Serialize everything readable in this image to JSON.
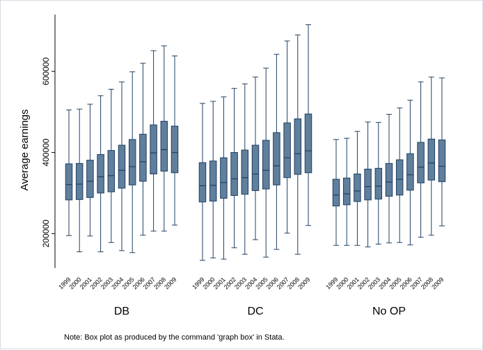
{
  "colors": {
    "box_fill": "#5f7f9c",
    "box_stroke": "#1f3f60",
    "whisker": "#1f3f60",
    "median": "#1f3f60",
    "axis": "#000000"
  },
  "chart_data": {
    "type": "box",
    "title": "",
    "ylabel": "Average earnings",
    "xlabel": "",
    "ylim": [
      115000,
      740000
    ],
    "yticks": [
      200000,
      400000,
      600000
    ],
    "grid": false,
    "note": "Note: Box plot as produced by the command 'graph box' in Stata.",
    "years": [
      "1999",
      "2000",
      "2001",
      "2002",
      "2003",
      "2004",
      "2005",
      "2006",
      "2007",
      "2008",
      "2009"
    ],
    "groups": [
      {
        "name": "DB",
        "boxes": [
          {
            "year": "1999",
            "min": 195000,
            "q1": 283000,
            "median": 321000,
            "q3": 372000,
            "max": 505000
          },
          {
            "year": "2000",
            "min": 155000,
            "q1": 284000,
            "median": 322000,
            "q3": 373000,
            "max": 507000
          },
          {
            "year": "2001",
            "min": 194000,
            "q1": 289000,
            "median": 329000,
            "q3": 381000,
            "max": 519000
          },
          {
            "year": "2002",
            "min": 155000,
            "q1": 300000,
            "median": 340000,
            "q3": 395000,
            "max": 540000
          },
          {
            "year": "2003",
            "min": 178000,
            "q1": 303000,
            "median": 343000,
            "q3": 405000,
            "max": 556000
          },
          {
            "year": "2004",
            "min": 158000,
            "q1": 312000,
            "median": 356000,
            "q3": 418000,
            "max": 574000
          },
          {
            "year": "2005",
            "min": 153000,
            "q1": 320000,
            "median": 365000,
            "q3": 432000,
            "max": 599000
          },
          {
            "year": "2006",
            "min": 196000,
            "q1": 329000,
            "median": 377000,
            "q3": 445000,
            "max": 620000
          },
          {
            "year": "2007",
            "min": 206000,
            "q1": 347000,
            "median": 399000,
            "q3": 468000,
            "max": 651000
          },
          {
            "year": "2008",
            "min": 206000,
            "q1": 354000,
            "median": 407000,
            "q3": 477000,
            "max": 663000
          },
          {
            "year": "2009",
            "min": 221000,
            "q1": 350000,
            "median": 400000,
            "q3": 465000,
            "max": 638000
          }
        ]
      },
      {
        "name": "DC",
        "boxes": [
          {
            "year": "1999",
            "min": 134000,
            "q1": 278000,
            "median": 318000,
            "q3": 375000,
            "max": 521000
          },
          {
            "year": "2000",
            "min": 140000,
            "q1": 280000,
            "median": 319000,
            "q3": 379000,
            "max": 526000
          },
          {
            "year": "2001",
            "min": 137000,
            "q1": 287000,
            "median": 326000,
            "q3": 387000,
            "max": 537000
          },
          {
            "year": "2002",
            "min": 165000,
            "q1": 294000,
            "median": 335000,
            "q3": 400000,
            "max": 558000
          },
          {
            "year": "2003",
            "min": 149000,
            "q1": 297000,
            "median": 338000,
            "q3": 406000,
            "max": 569000
          },
          {
            "year": "2004",
            "min": 185000,
            "q1": 306000,
            "median": 347000,
            "q3": 418000,
            "max": 586000
          },
          {
            "year": "2005",
            "min": 142000,
            "q1": 310000,
            "median": 356000,
            "q3": 430000,
            "max": 608000
          },
          {
            "year": "2006",
            "min": 161000,
            "q1": 320000,
            "median": 367000,
            "q3": 449000,
            "max": 642000
          },
          {
            "year": "2007",
            "min": 201000,
            "q1": 338000,
            "median": 387000,
            "q3": 473000,
            "max": 675000
          },
          {
            "year": "2008",
            "min": 149000,
            "q1": 346000,
            "median": 397000,
            "q3": 483000,
            "max": 690000
          },
          {
            "year": "2009",
            "min": 220000,
            "q1": 350000,
            "median": 404000,
            "q3": 495000,
            "max": 715000
          }
        ]
      },
      {
        "name": "No OP",
        "boxes": [
          {
            "year": "1999",
            "min": 171000,
            "q1": 268000,
            "median": 295000,
            "q3": 334000,
            "max": 432000
          },
          {
            "year": "2000",
            "min": 171000,
            "q1": 271000,
            "median": 298000,
            "q3": 337000,
            "max": 435000
          },
          {
            "year": "2001",
            "min": 171000,
            "q1": 279000,
            "median": 305000,
            "q3": 347000,
            "max": 452000
          },
          {
            "year": "2002",
            "min": 167000,
            "q1": 283000,
            "median": 316000,
            "q3": 359000,
            "max": 475000
          },
          {
            "year": "2003",
            "min": 174000,
            "q1": 285000,
            "median": 317000,
            "q3": 361000,
            "max": 474000
          },
          {
            "year": "2004",
            "min": 177000,
            "q1": 292000,
            "median": 327000,
            "q3": 373000,
            "max": 494000
          },
          {
            "year": "2005",
            "min": 178000,
            "q1": 295000,
            "median": 334000,
            "q3": 382000,
            "max": 510000
          },
          {
            "year": "2006",
            "min": 172000,
            "q1": 307000,
            "median": 345000,
            "q3": 397000,
            "max": 529000
          },
          {
            "year": "2007",
            "min": 191000,
            "q1": 325000,
            "median": 364000,
            "q3": 425000,
            "max": 574000
          },
          {
            "year": "2008",
            "min": 196000,
            "q1": 332000,
            "median": 374000,
            "q3": 433000,
            "max": 586000
          },
          {
            "year": "2009",
            "min": 219000,
            "q1": 328000,
            "median": 366000,
            "q3": 431000,
            "max": 584000
          }
        ]
      }
    ]
  }
}
